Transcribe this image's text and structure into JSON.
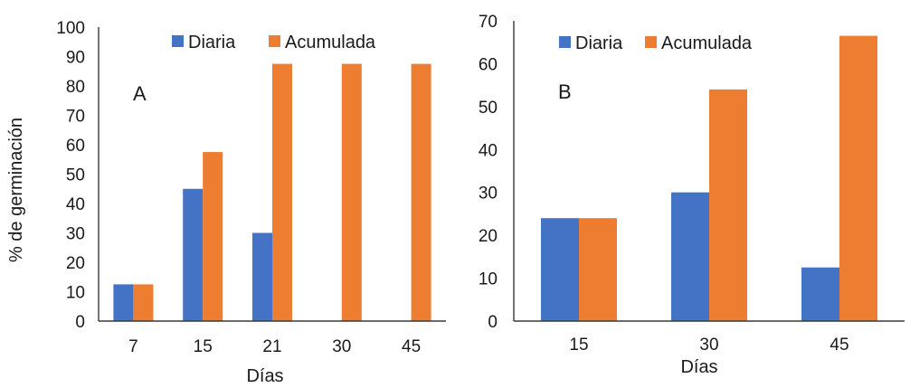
{
  "chart_data": [
    {
      "type": "bar",
      "panel_label": "A",
      "categories": [
        "7",
        "15",
        "21",
        "30",
        "45"
      ],
      "series": [
        {
          "name": "Diaria",
          "color": "#4472C4",
          "values": [
            12.5,
            45,
            30,
            0,
            0
          ]
        },
        {
          "name": "Acumulada",
          "color": "#ED7D31",
          "values": [
            12.5,
            57.5,
            87.5,
            87.5,
            87.5
          ]
        }
      ],
      "xlabel": "Días",
      "ylabel": "% de germinación",
      "ylim": [
        0,
        100
      ],
      "yticks": [
        "0",
        "10",
        "20",
        "30",
        "40",
        "50",
        "60",
        "70",
        "80",
        "90",
        "100"
      ],
      "grid": false,
      "legend": "top"
    },
    {
      "type": "bar",
      "panel_label": "B",
      "categories": [
        "15",
        "30",
        "45"
      ],
      "series": [
        {
          "name": "Diaria",
          "color": "#4472C4",
          "values": [
            24,
            30,
            12.5
          ]
        },
        {
          "name": "Acumulada",
          "color": "#ED7D31",
          "values": [
            24,
            54,
            66.5
          ]
        }
      ],
      "xlabel": "Días",
      "ylabel": "",
      "ylim": [
        0,
        70
      ],
      "yticks": [
        "0",
        "10",
        "20",
        "30",
        "40",
        "50",
        "60",
        "70"
      ],
      "grid": false,
      "legend": "top"
    }
  ]
}
